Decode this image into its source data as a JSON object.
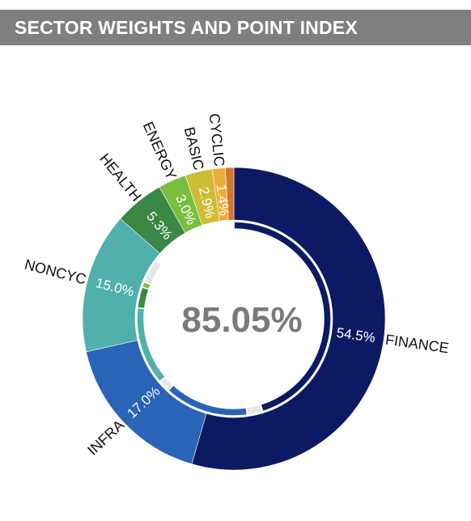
{
  "header": {
    "title": "SECTOR WEIGHTS AND POINT INDEX"
  },
  "chart_data": {
    "type": "pie",
    "center_value": "85.05%",
    "slices": [
      {
        "category": "FINANCE",
        "value": 54.5,
        "label": "54.5%",
        "color": "#0c1a63"
      },
      {
        "category": "INFRA",
        "value": 17.0,
        "label": "17.0%",
        "color": "#2a64b6"
      },
      {
        "category": "NONCYC",
        "value": 15.0,
        "label": "15.0%",
        "color": "#4fb0ac"
      },
      {
        "category": "HEALTH",
        "value": 5.3,
        "label": "5.3%",
        "color": "#3a8746"
      },
      {
        "category": "ENERGY",
        "value": 3.0,
        "label": "3.0%",
        "color": "#78bf3f"
      },
      {
        "category": "BASIC",
        "value": 2.9,
        "label": "2.9%",
        "color": "#cdbd35"
      },
      {
        "category": "CYCLIC",
        "value": 1.4,
        "label": "1.4%",
        "color": "#ecae3a"
      },
      {
        "category": "",
        "value": 0.9,
        "label": "",
        "color": "#d5752e"
      }
    ],
    "inner_ring": [
      {
        "value": 45.2,
        "color": "#0c1a63"
      },
      {
        "value": 2.6,
        "color": "#e6e6e6"
      },
      {
        "value": 14.0,
        "color": "#2a64b6"
      },
      {
        "value": 2.0,
        "color": "#e6e6e6"
      },
      {
        "value": 13.0,
        "color": "#4fb0ac"
      },
      {
        "value": 3.5,
        "color": "#3a8746"
      },
      {
        "value": 0.9,
        "color": "#78bf3f"
      },
      {
        "value": 4.0,
        "color": "#e6e6e6"
      },
      {
        "value": 14.8,
        "color": "#ffffff"
      }
    ]
  }
}
